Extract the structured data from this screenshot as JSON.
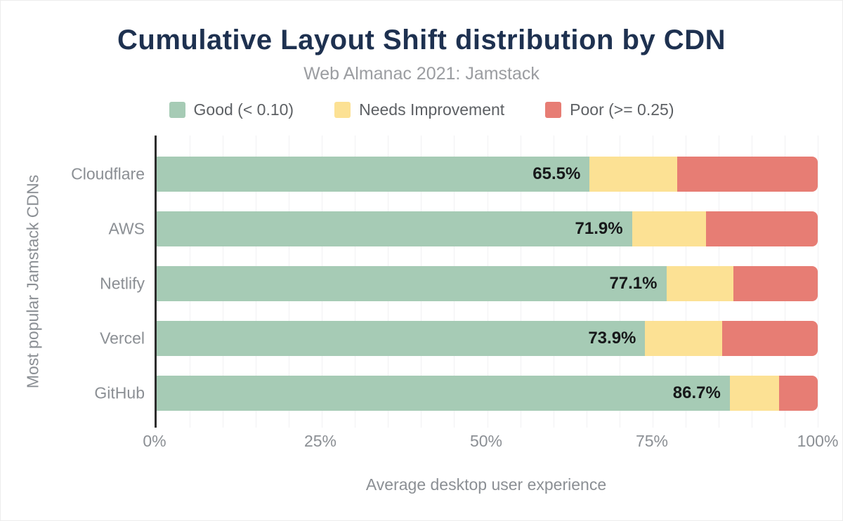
{
  "title": "Cumulative Layout Shift distribution by CDN",
  "subtitle": "Web Almanac 2021: Jamstack",
  "chart_data": {
    "type": "bar",
    "orientation": "horizontal",
    "stacked": true,
    "title": "Cumulative Layout Shift distribution by CDN",
    "subtitle": "Web Almanac 2021: Jamstack",
    "categories": [
      "Cloudflare",
      "AWS",
      "Netlify",
      "Vercel",
      "GitHub"
    ],
    "series": [
      {
        "name": "Good (< 0.10)",
        "color": "#a6cbb5",
        "values": [
          65.5,
          71.9,
          77.1,
          73.9,
          86.7
        ]
      },
      {
        "name": "Needs Improvement",
        "color": "#fce194",
        "values": [
          13.2,
          11.2,
          10.2,
          11.7,
          7.5
        ]
      },
      {
        "name": "Poor (>= 0.25)",
        "color": "#e77d74",
        "values": [
          21.3,
          16.9,
          12.7,
          14.4,
          5.8
        ]
      }
    ],
    "bar_labels": [
      "65.5%",
      "71.9%",
      "77.1%",
      "73.9%",
      "86.7%"
    ],
    "xlabel": "Average desktop user experience",
    "ylabel": "Most popular Jamstack CDNs",
    "x_ticks": [
      {
        "label": "0%",
        "value": 0
      },
      {
        "label": "25%",
        "value": 25
      },
      {
        "label": "50%",
        "value": 50
      },
      {
        "label": "75%",
        "value": 75
      },
      {
        "label": "100%",
        "value": 100
      }
    ],
    "xlim": [
      0,
      100
    ],
    "grid": "minor vertical gridlines every 5%",
    "legend_position": "top"
  },
  "style": {
    "title_color": "#1e3150",
    "subtitle_color": "#9b9da1",
    "label_color": "#8b8f94",
    "legend_text_color": "#5d6064",
    "bar_value_color": "#17181a",
    "axis_line_color": "#2d2d2d",
    "gridline_color": "#f1f1f3"
  }
}
